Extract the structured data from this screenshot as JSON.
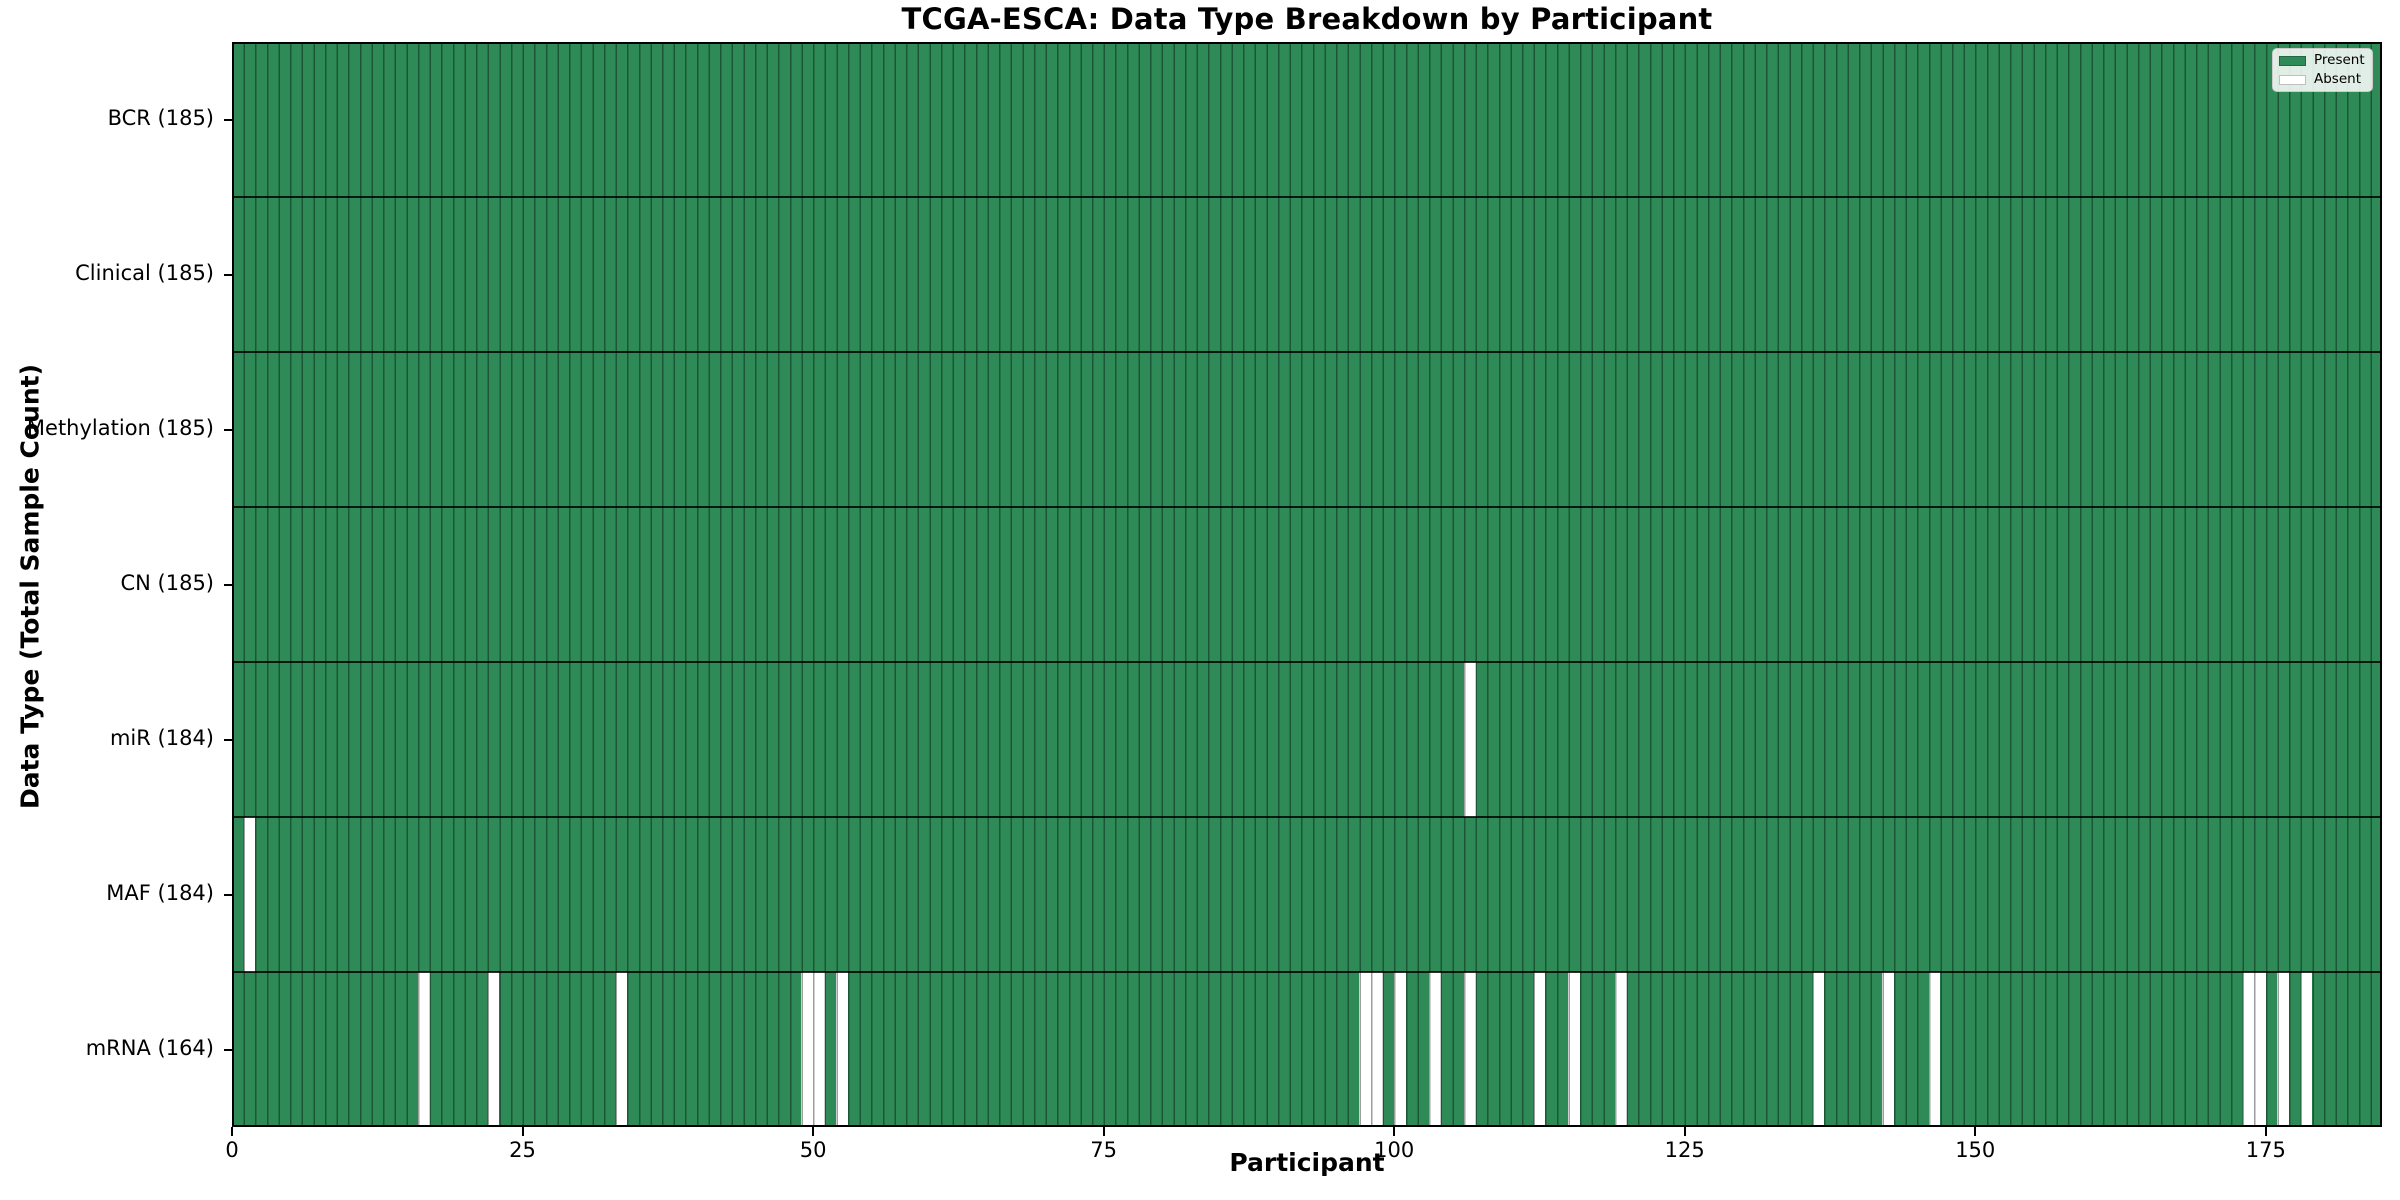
{
  "chart_data": {
    "type": "heatmap",
    "title": "TCGA-ESCA: Data Type Breakdown by Participant",
    "xlabel": "Participant",
    "ylabel": "Data Type (Total Sample Count)",
    "x_ticks": [
      0,
      25,
      50,
      75,
      100,
      125,
      150,
      175
    ],
    "x_range": [
      0,
      185
    ],
    "n_participants": 185,
    "grid": "column-edges",
    "legend_position": "upper-right",
    "legend": [
      {
        "label": "Present",
        "color": "#2e8b57"
      },
      {
        "label": "Absent",
        "color": "#ffffff"
      }
    ],
    "colors": {
      "present": "#2e8b57",
      "absent": "#ffffff",
      "bar_edge": "rgba(0,0,0,0.38)",
      "row_separator": "rgba(0,0,0,0.82)",
      "spine": "#000000"
    },
    "rows": [
      {
        "label": "BCR (185)",
        "data_type": "BCR",
        "present_count": 185,
        "absent_participants": []
      },
      {
        "label": "Clinical (185)",
        "data_type": "Clinical",
        "present_count": 185,
        "absent_participants": []
      },
      {
        "label": "Methylation (185)",
        "data_type": "Methylation",
        "present_count": 185,
        "absent_participants": []
      },
      {
        "label": "CN (185)",
        "data_type": "CN",
        "present_count": 185,
        "absent_participants": []
      },
      {
        "label": "miR (184)",
        "data_type": "miR",
        "present_count": 184,
        "absent_participants": [
          106
        ]
      },
      {
        "label": "MAF (184)",
        "data_type": "MAF",
        "present_count": 184,
        "absent_participants": [
          1
        ]
      },
      {
        "label": "mRNA (164)",
        "data_type": "mRNA",
        "present_count": 164,
        "absent_participants": [
          16,
          22,
          33,
          49,
          50,
          52,
          97,
          98,
          100,
          103,
          106,
          112,
          115,
          119,
          136,
          142,
          146,
          173,
          174,
          176,
          178
        ]
      }
    ]
  }
}
